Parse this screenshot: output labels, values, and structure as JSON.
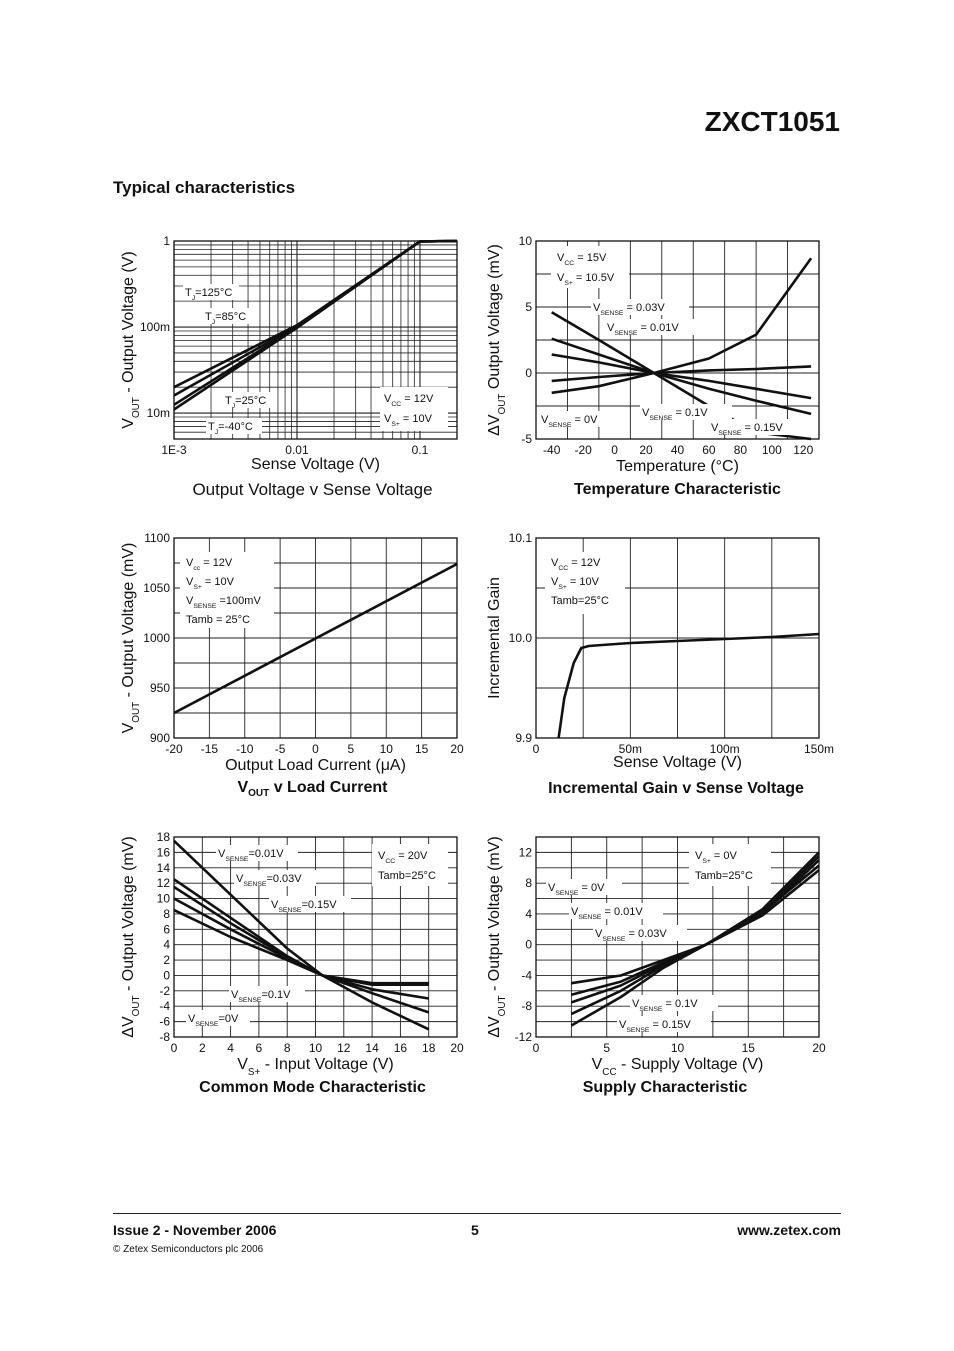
{
  "page": {
    "part_number": "ZXCT1051",
    "section_title": "Typical characteristics",
    "footer": {
      "issue": "Issue 2 - November 2006",
      "copyright": "© Zetex Semiconductors plc 2006",
      "page": "5",
      "url": "www.zetex.com"
    }
  },
  "chart_data": [
    {
      "id": "c1",
      "type": "line",
      "title": "Output Voltage v Sense Voltage",
      "xlabel": "Sense Voltage (V)",
      "ylabel": "VOUT - Output Voltage (V)",
      "xscale": "log",
      "yscale": "log",
      "xlim": [
        0.001,
        0.2
      ],
      "ylim": [
        0.005,
        1
      ],
      "xticks": [
        {
          "v": 0.001,
          "label": "1E-3"
        },
        {
          "v": 0.01,
          "label": "0.01"
        },
        {
          "v": 0.1,
          "label": "0.1"
        }
      ],
      "yticks": [
        {
          "v": 0.01,
          "label": "10m"
        },
        {
          "v": 0.1,
          "label": "100m"
        },
        {
          "v": 1,
          "label": "1"
        }
      ],
      "conditions": [
        "VCC = 12V",
        "VS+ = 10V"
      ],
      "series": [
        {
          "name": "TJ=125°C",
          "x": [
            0.001,
            0.01,
            0.1,
            0.2
          ],
          "y": [
            0.02,
            0.105,
            0.99,
            1.97
          ]
        },
        {
          "name": "TJ=85°C",
          "x": [
            0.001,
            0.01,
            0.1,
            0.2
          ],
          "y": [
            0.016,
            0.102,
            0.99,
            1.97
          ]
        },
        {
          "name": "TJ=25°C",
          "x": [
            0.001,
            0.01,
            0.1,
            0.2
          ],
          "y": [
            0.0125,
            0.1,
            0.99,
            1.97
          ]
        },
        {
          "name": "TJ=-40°C",
          "x": [
            0.001,
            0.01,
            0.1,
            0.2
          ],
          "y": [
            0.011,
            0.098,
            0.99,
            1.97
          ]
        }
      ],
      "grid": true
    },
    {
      "id": "c2",
      "type": "line",
      "title": "Temperature Characteristic",
      "xlabel": "Temperature (°C)",
      "ylabel": "ΔVOUT Output Voltage (mV)",
      "xlim": [
        -50,
        130
      ],
      "ylim": [
        -5,
        10
      ],
      "xticks": [
        -40,
        -20,
        0,
        20,
        40,
        60,
        80,
        100,
        120
      ],
      "yticks": [
        -5,
        0,
        5,
        10
      ],
      "conditions": [
        "VCC = 15V",
        "VS+ = 10.5V"
      ],
      "series": [
        {
          "name": "VSENSE = 0V",
          "x": [
            -40,
            -10,
            25,
            60,
            90,
            125
          ],
          "y": [
            4.6,
            2.5,
            0,
            -2.5,
            -4.5,
            -6.5
          ]
        },
        {
          "name": "VSENSE = 0.01V",
          "x": [
            -40,
            -10,
            25,
            60,
            90,
            125
          ],
          "y": [
            2.6,
            1.4,
            0,
            -1.2,
            -2.1,
            -3.1
          ]
        },
        {
          "name": "VSENSE = 0.03V",
          "x": [
            -40,
            -10,
            25,
            60,
            90,
            125
          ],
          "y": [
            1.4,
            0.8,
            0,
            -0.6,
            -1.2,
            -1.9
          ]
        },
        {
          "name": "VSENSE = 0.1V",
          "x": [
            -40,
            -10,
            25,
            60,
            90,
            125
          ],
          "y": [
            -0.6,
            -0.3,
            0,
            0.2,
            0.3,
            0.5
          ]
        },
        {
          "name": "VSENSE = 0.15V",
          "x": [
            -40,
            -10,
            25,
            60,
            90,
            125
          ],
          "y": [
            -1.5,
            -1.0,
            0,
            1.1,
            2.9,
            8.7
          ]
        }
      ],
      "grid": true
    },
    {
      "id": "c3",
      "type": "line",
      "title": "VOUT v Load Current",
      "xlabel": "Output Load Current (μA)",
      "ylabel": "VOUT - Output Voltage (mV)",
      "xlim": [
        -20,
        20
      ],
      "ylim": [
        900,
        1100
      ],
      "xticks": [
        -20,
        -15,
        -10,
        -5,
        0,
        5,
        10,
        15,
        20
      ],
      "yticks": [
        900,
        950,
        1000,
        1050,
        1100
      ],
      "conditions": [
        "Vcc = 12V",
        "VS+ = 10V",
        "VSENSE =100mV",
        "Tamb = 25°C"
      ],
      "series": [
        {
          "name": "",
          "x": [
            -20,
            20
          ],
          "y": [
            925,
            1074
          ]
        }
      ],
      "grid": true
    },
    {
      "id": "c4",
      "type": "line",
      "title": "Incremental Gain v Sense Voltage",
      "xlabel": "Sense Voltage (V)",
      "ylabel": "Incremental Gain",
      "xlim": [
        0,
        0.15
      ],
      "ylim": [
        9.9,
        10.1
      ],
      "xticks": [
        {
          "v": 0,
          "label": "0"
        },
        {
          "v": 0.05,
          "label": "50m"
        },
        {
          "v": 0.1,
          "label": "100m"
        },
        {
          "v": 0.15,
          "label": "150m"
        }
      ],
      "yticks": [
        {
          "v": 9.9,
          "label": "9.9"
        },
        {
          "v": 10.0,
          "label": "10.0"
        },
        {
          "v": 10.1,
          "label": "10.1"
        }
      ],
      "conditions": [
        "VCC = 12V",
        "VS+ = 10V",
        "Tamb=25°C"
      ],
      "series": [
        {
          "name": "",
          "x": [
            0.012,
            0.015,
            0.02,
            0.024,
            0.028,
            0.035,
            0.05,
            0.075,
            0.1,
            0.125,
            0.15
          ],
          "y": [
            9.9,
            9.94,
            9.975,
            9.99,
            9.992,
            9.993,
            9.995,
            9.997,
            9.999,
            10.001,
            10.004
          ]
        }
      ],
      "grid": true
    },
    {
      "id": "c5",
      "type": "line",
      "title": "Common Mode Characteristic",
      "xlabel": "VS+ - Input Voltage (V)",
      "ylabel": "ΔVOUT - Output Voltage (mV)",
      "xlim": [
        0,
        20
      ],
      "ylim": [
        -8,
        18
      ],
      "xticks": [
        0,
        2,
        4,
        6,
        8,
        10,
        12,
        14,
        16,
        18,
        20
      ],
      "yticks": [
        -8,
        -6,
        -4,
        -2,
        0,
        2,
        4,
        6,
        8,
        10,
        12,
        14,
        16,
        18
      ],
      "conditions": [
        "VCC = 20V",
        "Tamb=25°C"
      ],
      "series": [
        {
          "name": "VSENSE=0V",
          "x": [
            0,
            4,
            8,
            10.5,
            14,
            18
          ],
          "y": [
            17.5,
            10.5,
            3.5,
            0,
            -3.5,
            -7
          ]
        },
        {
          "name": "VSENSE=0.01V",
          "x": [
            0,
            4,
            8,
            10.5,
            14,
            18
          ],
          "y": [
            12.5,
            7.5,
            2.5,
            0,
            -2.3,
            -4.8
          ]
        },
        {
          "name": "VSENSE=0.03V",
          "x": [
            0,
            4,
            8,
            10.5,
            14,
            18
          ],
          "y": [
            11.5,
            6.8,
            2.4,
            0,
            -1.8,
            -3
          ]
        },
        {
          "name": "VSENSE=0.15V",
          "x": [
            0,
            4,
            8,
            10.5,
            14,
            18
          ],
          "y": [
            10,
            6,
            2.2,
            0,
            -1.2,
            -1.2
          ]
        },
        {
          "name": "VSENSE=0.1V",
          "x": [
            0,
            4,
            8,
            10.5,
            14,
            18
          ],
          "y": [
            8.5,
            5,
            2,
            0,
            -1,
            -1
          ]
        }
      ],
      "grid": true
    },
    {
      "id": "c6",
      "type": "line",
      "title": "Supply Characteristic",
      "xlabel": "VCC - Supply Voltage (V)",
      "ylabel": "ΔVOUT - Output Voltage (mV)",
      "xlim": [
        0,
        20
      ],
      "ylim": [
        -12,
        14
      ],
      "xticks": [
        0,
        5,
        10,
        15,
        20
      ],
      "yticks": [
        -12,
        -8,
        -4,
        0,
        4,
        8,
        12
      ],
      "conditions": [
        "VS+ = 0V",
        "Tamb=25°C"
      ],
      "series": [
        {
          "name": "VSENSE = 0V",
          "x": [
            2.5,
            6,
            9,
            12,
            16,
            20
          ],
          "y": [
            -5,
            -4,
            -2,
            0,
            4,
            11
          ]
        },
        {
          "name": "VSENSE = 0.01V",
          "x": [
            2.5,
            6,
            9,
            12,
            16,
            20
          ],
          "y": [
            -6.5,
            -4.8,
            -2.3,
            0,
            4.3,
            11.5
          ]
        },
        {
          "name": "VSENSE = 0.03V",
          "x": [
            2.5,
            6,
            9,
            12,
            16,
            20
          ],
          "y": [
            -7.5,
            -5.3,
            -2.5,
            0,
            4.6,
            12
          ]
        },
        {
          "name": "VSENSE = 0.1V",
          "x": [
            2.5,
            6,
            9,
            12,
            16,
            20
          ],
          "y": [
            -9,
            -6,
            -2.7,
            0,
            3.8,
            9.7
          ]
        },
        {
          "name": "VSENSE = 0.15V",
          "x": [
            2.5,
            6,
            9,
            12,
            16,
            20
          ],
          "y": [
            -10.5,
            -6.8,
            -3,
            0,
            4.2,
            10.3
          ]
        }
      ],
      "grid": true
    }
  ]
}
